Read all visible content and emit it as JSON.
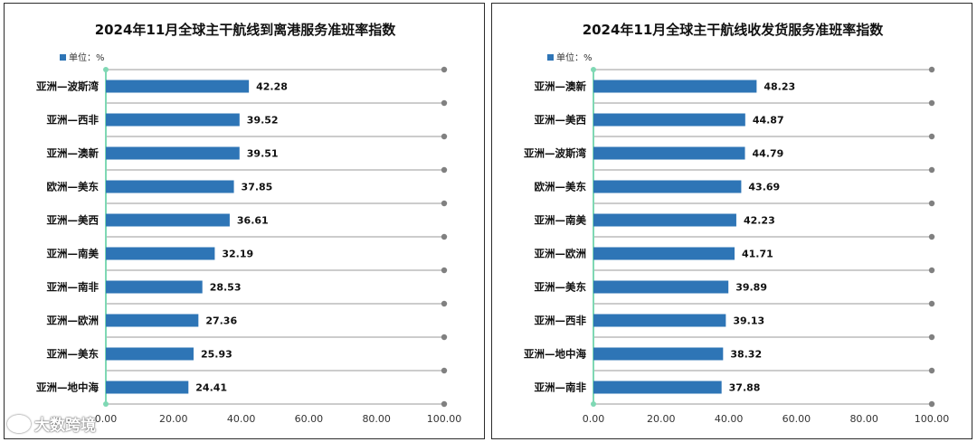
{
  "colors": {
    "bar": "#2E75B6",
    "grid": "#9a9a9a",
    "dot": "#808080",
    "axis_start": "#7fd8b4",
    "text": "#111111"
  },
  "watermark": {
    "text": "大数跨境",
    "icon": "weibo-icon"
  },
  "chart_data": [
    {
      "type": "bar",
      "orientation": "horizontal",
      "title": "2024年11月全球主干航线到离港服务准班率指数",
      "legend": "单位：%",
      "legend_placement": "top-left",
      "categories": [
        "亚洲—波斯湾",
        "亚洲—西非",
        "亚洲—澳新",
        "欧洲—美东",
        "亚洲—美西",
        "亚洲—南美",
        "亚洲—南非",
        "亚洲—欧洲",
        "亚洲—美东",
        "亚洲—地中海"
      ],
      "values": [
        42.28,
        39.52,
        39.51,
        37.85,
        36.61,
        32.19,
        28.53,
        27.36,
        25.93,
        24.41
      ],
      "xlim": [
        0,
        100
      ],
      "xticks": [
        "0.00",
        "20.00",
        "40.00",
        "60.00",
        "80.00",
        "100.00"
      ],
      "xlabel": "",
      "ylabel": ""
    },
    {
      "type": "bar",
      "orientation": "horizontal",
      "title": "2024年11月全球主干航线收发货服务准班率指数",
      "legend": "单位：%",
      "legend_placement": "top-left",
      "categories": [
        "亚洲—澳新",
        "亚洲—美西",
        "亚洲—波斯湾",
        "欧洲—美东",
        "亚洲—南美",
        "亚洲—欧洲",
        "亚洲—美东",
        "亚洲—西非",
        "亚洲—地中海",
        "亚洲—南非"
      ],
      "values": [
        48.23,
        44.87,
        44.79,
        43.69,
        42.23,
        41.71,
        39.89,
        39.13,
        38.32,
        37.88
      ],
      "xlim": [
        0,
        100
      ],
      "xticks": [
        "0.00",
        "20.00",
        "40.00",
        "60.00",
        "80.00",
        "100.00"
      ],
      "xlabel": "",
      "ylabel": ""
    }
  ]
}
